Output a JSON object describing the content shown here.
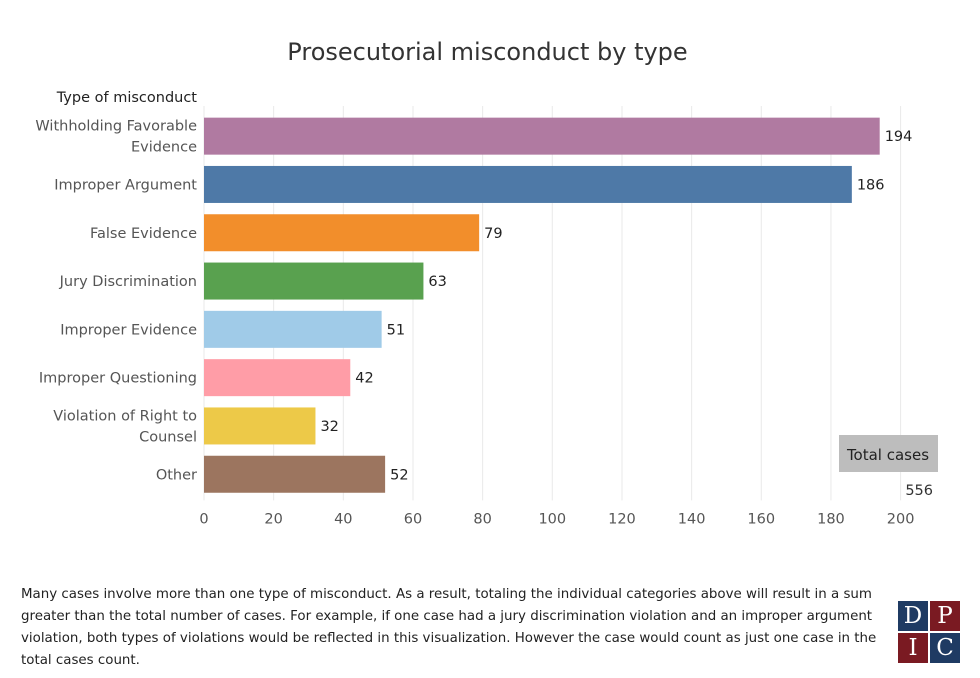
{
  "header": {
    "title": "Prosecutorial misconduct by type"
  },
  "chart_data": {
    "type": "bar",
    "orientation": "horizontal",
    "y_header": "Type of misconduct",
    "categories": [
      [
        "Withholding Favorable",
        "Evidence"
      ],
      [
        "Improper Argument"
      ],
      [
        "False Evidence"
      ],
      [
        "Jury Discrimination"
      ],
      [
        "Improper Evidence"
      ],
      [
        "Improper Questioning"
      ],
      [
        "Violation of Right to",
        "Counsel"
      ],
      [
        "Other"
      ]
    ],
    "values": [
      194,
      186,
      79,
      63,
      51,
      42,
      32,
      52
    ],
    "colors": [
      "#b07aa1",
      "#4e79a7",
      "#f28e2b",
      "#59a14f",
      "#a0cbe8",
      "#ff9da7",
      "#edc948",
      "#9c755f"
    ],
    "xlim": [
      0,
      212
    ],
    "xticks": [
      0,
      20,
      40,
      60,
      80,
      100,
      120,
      140,
      160,
      180,
      200
    ],
    "grid": true,
    "total": {
      "label": "Total cases",
      "value": "556"
    }
  },
  "footnote": "Many cases involve more than one type of misconduct. As a result, totaling the individual categories above will result in a sum greater than the total number of cases. For example, if one case had a jury discrimination violation and an improper argument violation, both types of violations would be reflected in this visualization. However the case would count as just one case in the total cases count.",
  "logo": {
    "letters": [
      "D",
      "P",
      "I",
      "C"
    ]
  }
}
